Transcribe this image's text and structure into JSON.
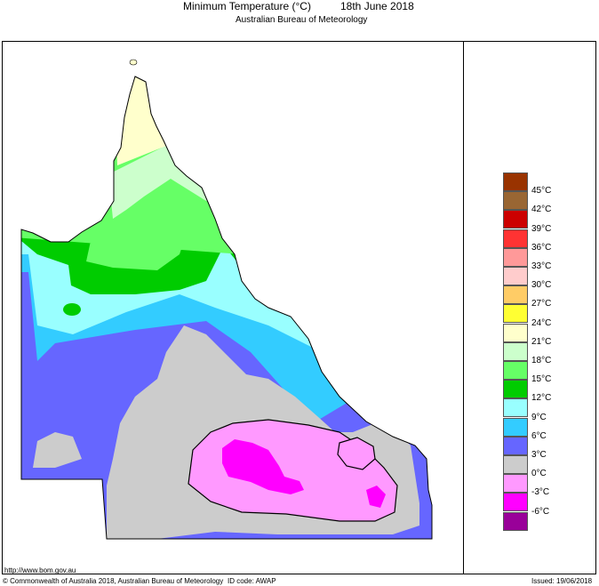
{
  "header": {
    "title": "Minimum Temperature (°C)",
    "date": "18th June 2018",
    "subtitle": "Australian Bureau of Meteorology"
  },
  "legend": {
    "bins": [
      {
        "label": "45°C",
        "color": "#993300"
      },
      {
        "label": "42°C",
        "color": "#996633"
      },
      {
        "label": "39°C",
        "color": "#cc0000"
      },
      {
        "label": "36°C",
        "color": "#ff3333"
      },
      {
        "label": "33°C",
        "color": "#ff9999"
      },
      {
        "label": "30°C",
        "color": "#ffcccc"
      },
      {
        "label": "27°C",
        "color": "#ffcc66"
      },
      {
        "label": "24°C",
        "color": "#ffff33"
      },
      {
        "label": "21°C",
        "color": "#ffffcc"
      },
      {
        "label": "18°C",
        "color": "#ccffcc"
      },
      {
        "label": "15°C",
        "color": "#66ff66"
      },
      {
        "label": "12°C",
        "color": "#00cc00"
      },
      {
        "label": "9°C",
        "color": "#99ffff"
      },
      {
        "label": "6°C",
        "color": "#33ccff"
      },
      {
        "label": "3°C",
        "color": "#6666ff"
      },
      {
        "label": "0°C",
        "color": "#cccccc"
      },
      {
        "label": "-3°C",
        "color": "#ff99ff"
      },
      {
        "label": "-6°C",
        "color": "#ff00ff"
      }
    ],
    "bottom_color": "#990099"
  },
  "footer": {
    "url": "http://www.bom.gov.au",
    "copyright": "© Commonwealth of Australia 2018, Australian Bureau of Meteorology",
    "id_code": "ID code: AWAP",
    "issued": "Issued: 19/06/2018"
  }
}
